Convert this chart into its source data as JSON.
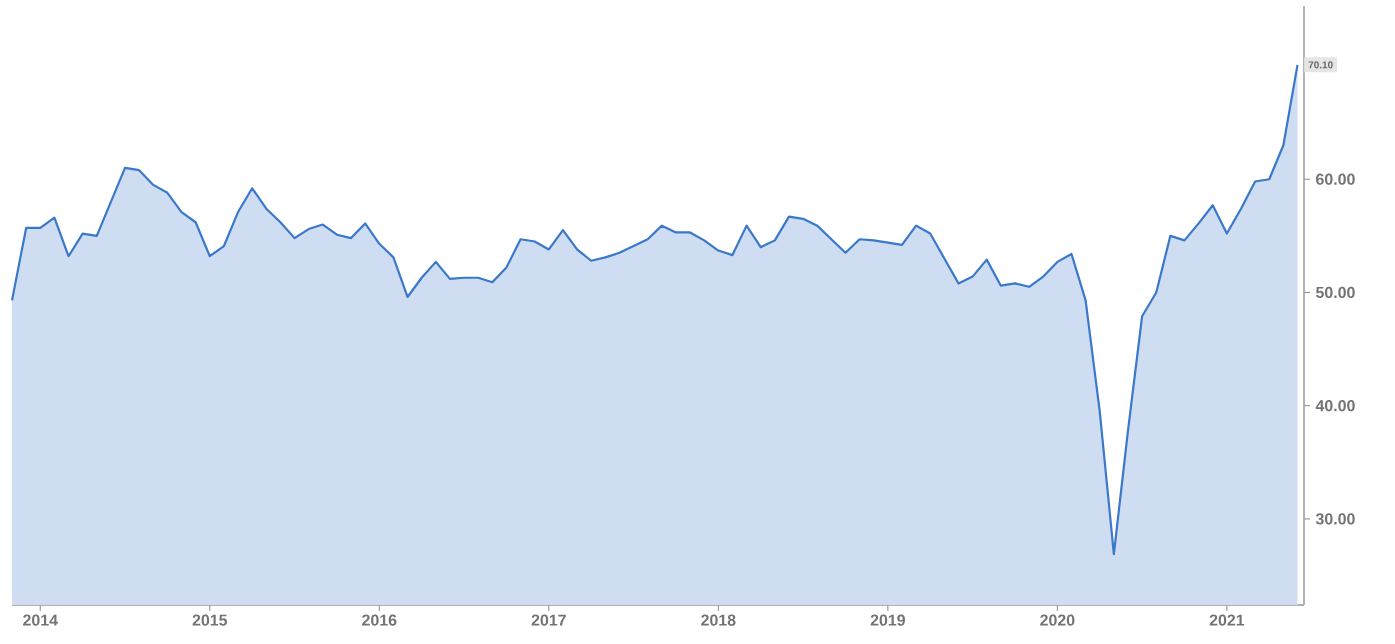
{
  "chart_data": {
    "type": "area",
    "color": "#3a78c9",
    "x": [
      "2013-11",
      "2013-12",
      "2014-01",
      "2014-02",
      "2014-03",
      "2014-04",
      "2014-05",
      "2014-06",
      "2014-07",
      "2014-08",
      "2014-09",
      "2014-10",
      "2014-11",
      "2014-12",
      "2015-01",
      "2015-02",
      "2015-03",
      "2015-04",
      "2015-05",
      "2015-06",
      "2015-07",
      "2015-08",
      "2015-09",
      "2015-10",
      "2015-11",
      "2015-12",
      "2016-01",
      "2016-02",
      "2016-03",
      "2016-04",
      "2016-05",
      "2016-06",
      "2016-07",
      "2016-08",
      "2016-09",
      "2016-10",
      "2016-11",
      "2016-12",
      "2017-01",
      "2017-02",
      "2017-03",
      "2017-04",
      "2017-05",
      "2017-06",
      "2017-07",
      "2017-08",
      "2017-09",
      "2017-10",
      "2017-11",
      "2017-12",
      "2018-01",
      "2018-02",
      "2018-03",
      "2018-04",
      "2018-05",
      "2018-06",
      "2018-07",
      "2018-08",
      "2018-09",
      "2018-10",
      "2018-11",
      "2018-12",
      "2019-01",
      "2019-02",
      "2019-03",
      "2019-04",
      "2019-05",
      "2019-06",
      "2019-07",
      "2019-08",
      "2019-09",
      "2019-10",
      "2019-11",
      "2019-12",
      "2020-01",
      "2020-02",
      "2020-03",
      "2020-04",
      "2020-05",
      "2020-06",
      "2020-07",
      "2020-08",
      "2020-09",
      "2020-10",
      "2020-11",
      "2020-12",
      "2021-01",
      "2021-02",
      "2021-03",
      "2021-04",
      "2021-05",
      "2021-06"
    ],
    "values": [
      49.3,
      55.7,
      55.7,
      56.6,
      53.2,
      55.2,
      55.0,
      58.0,
      61.0,
      60.8,
      59.5,
      58.8,
      57.1,
      56.2,
      53.2,
      54.1,
      57.1,
      59.2,
      57.4,
      56.2,
      54.8,
      55.6,
      56.0,
      55.1,
      54.8,
      56.1,
      54.3,
      53.1,
      49.6,
      51.3,
      52.7,
      51.2,
      51.3,
      51.3,
      50.9,
      52.2,
      54.7,
      54.5,
      53.8,
      55.5,
      53.8,
      52.8,
      53.1,
      53.5,
      54.1,
      54.7,
      55.9,
      55.3,
      55.3,
      54.6,
      53.7,
      53.3,
      55.9,
      54.0,
      54.6,
      56.7,
      56.5,
      55.9,
      54.7,
      53.5,
      54.7,
      54.6,
      54.4,
      54.2,
      55.9,
      55.2,
      53.0,
      50.8,
      51.4,
      52.9,
      50.6,
      50.8,
      50.5,
      51.4,
      52.7,
      53.4,
      49.3,
      39.5,
      26.9,
      37.8,
      47.9,
      50.0,
      55.0,
      54.6,
      56.1,
      57.7,
      55.2,
      57.4,
      59.8,
      60.0,
      63.0,
      70.1
    ],
    "xlim": [
      "2013-11",
      "2021-06-15"
    ],
    "ylim": [
      22.4,
      75.3
    ],
    "xticks": [
      "2014",
      "2015",
      "2016",
      "2017",
      "2018",
      "2019",
      "2020",
      "2021"
    ],
    "yticks": [
      {
        "value": 30,
        "label": "30.00"
      },
      {
        "value": 40,
        "label": "40.00"
      },
      {
        "value": 50,
        "label": "50.00"
      },
      {
        "value": 60,
        "label": "60.00"
      }
    ],
    "annotations": [
      {
        "text": "70.10",
        "x": "2021-06",
        "y": 70.1
      }
    ]
  }
}
